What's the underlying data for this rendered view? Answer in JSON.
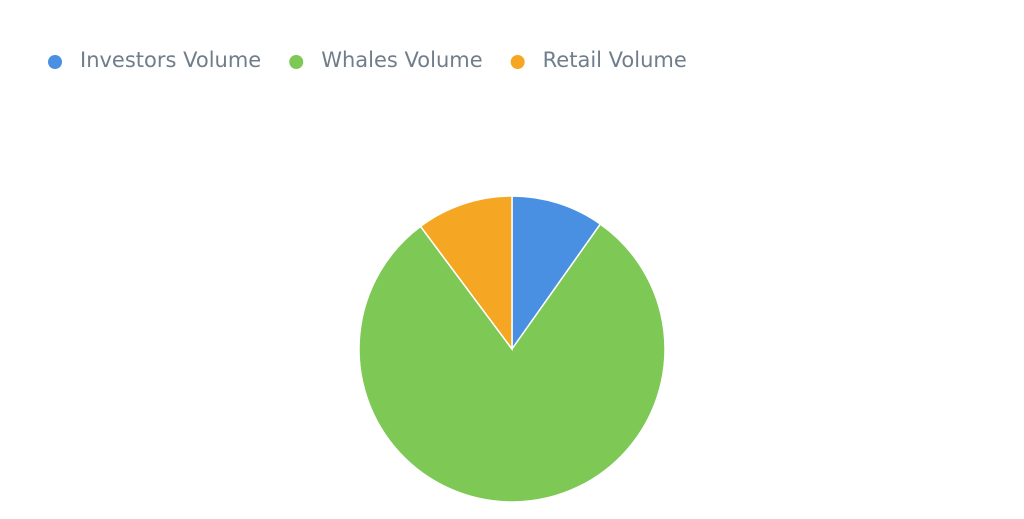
{
  "chart_data": {
    "type": "pie",
    "categories": [
      "Investors Volume",
      "Whales Volume",
      "Retail Volume"
    ],
    "values": [
      9.8,
      80,
      10.2
    ],
    "colors": [
      "#4a90e2",
      "#7ec855",
      "#f5a623"
    ],
    "legend": "top-left"
  }
}
